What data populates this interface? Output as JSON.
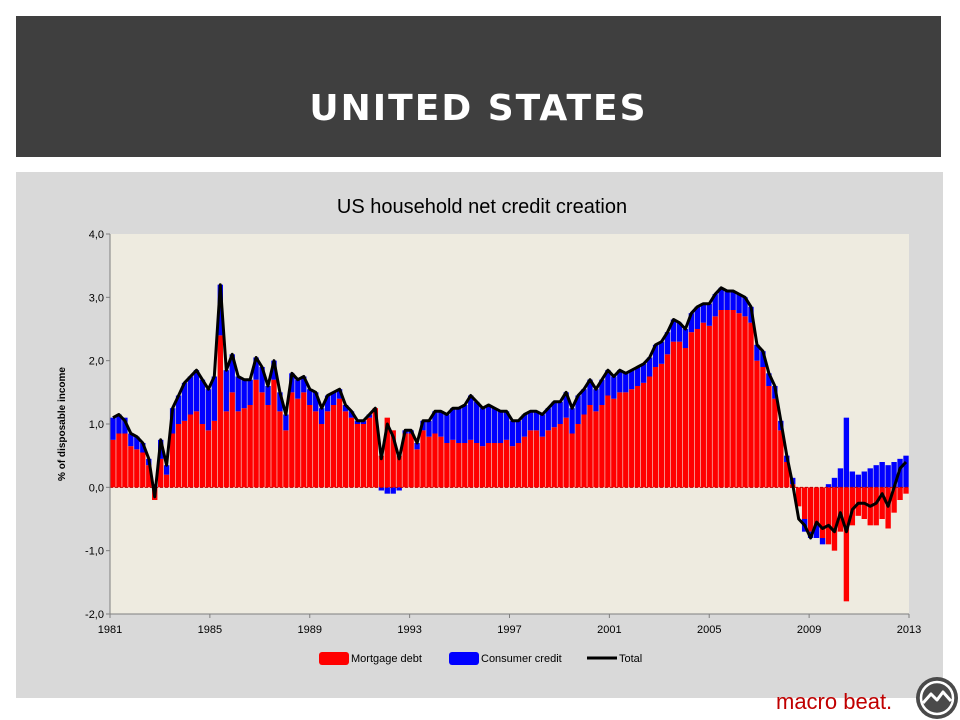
{
  "header": {
    "title": "UNITED STATES"
  },
  "brand": {
    "text": "macro beat.",
    "icon": "mountain-logo-icon"
  },
  "colors": {
    "header_bg": "#3f3f3f",
    "panel_bg": "#d9d9d9",
    "plot_bg": "#eeebe0",
    "mortgage": "#ff0000",
    "consumer": "#0000ff",
    "total": "#000000",
    "brand": "#c00000"
  },
  "chart_data": {
    "type": "bar",
    "stacked": true,
    "title": "US household net credit creation",
    "ylabel": "% of disposable income",
    "xlabel": "",
    "ylim": [
      -2.0,
      4.0
    ],
    "y_ticks": [
      "4,0",
      "3,0",
      "2,0",
      "1,0",
      "0,0",
      "-1,0",
      "-2,0"
    ],
    "x_ticks": [
      "1981",
      "1985",
      "1989",
      "1993",
      "1997",
      "2001",
      "2005",
      "2009",
      "2013"
    ],
    "grid": false,
    "legend_position": "bottom",
    "frequency": "quarterly",
    "x_range": [
      "1981",
      "2013"
    ],
    "series": [
      {
        "name": "Mortgage debt",
        "kind": "bar",
        "values": [
          0.75,
          0.85,
          0.85,
          0.65,
          0.6,
          0.55,
          0.35,
          -0.2,
          0.45,
          0.2,
          0.85,
          1.0,
          1.05,
          1.15,
          1.2,
          1.0,
          0.9,
          1.05,
          2.4,
          1.2,
          1.5,
          1.2,
          1.25,
          1.3,
          1.7,
          1.5,
          1.3,
          1.7,
          1.2,
          0.9,
          1.5,
          1.4,
          1.5,
          1.3,
          1.2,
          1.0,
          1.2,
          1.3,
          1.4,
          1.2,
          1.1,
          1.0,
          1.0,
          1.1,
          1.25,
          0.5,
          1.1,
          0.9,
          0.5,
          0.85,
          0.85,
          0.6,
          0.9,
          0.8,
          0.85,
          0.8,
          0.7,
          0.75,
          0.7,
          0.7,
          0.75,
          0.7,
          0.65,
          0.7,
          0.7,
          0.7,
          0.75,
          0.65,
          0.7,
          0.8,
          0.9,
          0.9,
          0.8,
          0.9,
          0.95,
          1.0,
          1.1,
          0.85,
          1.0,
          1.15,
          1.3,
          1.2,
          1.3,
          1.45,
          1.4,
          1.5,
          1.5,
          1.55,
          1.6,
          1.65,
          1.75,
          1.9,
          1.95,
          2.1,
          2.3,
          2.3,
          2.2,
          2.45,
          2.5,
          2.6,
          2.55,
          2.7,
          2.8,
          2.8,
          2.8,
          2.75,
          2.7,
          2.6,
          2.0,
          1.9,
          1.6,
          1.4,
          0.9,
          0.4,
          0.05,
          -0.3,
          -0.5,
          -0.7,
          -0.6,
          -0.8,
          -0.9,
          -1.0,
          -0.7,
          -1.8,
          -0.6,
          -0.45,
          -0.5,
          -0.6,
          -0.6,
          -0.5,
          -0.65,
          -0.4,
          -0.2,
          -0.1
        ],
        "note": "Bar values are approximate, read from the chart."
      },
      {
        "name": "Consumer credit",
        "kind": "bar",
        "values": [
          0.35,
          0.3,
          0.25,
          0.2,
          0.2,
          0.15,
          0.1,
          0.05,
          0.3,
          0.15,
          0.4,
          0.45,
          0.6,
          0.6,
          0.65,
          0.7,
          0.65,
          0.7,
          0.8,
          0.65,
          0.6,
          0.55,
          0.45,
          0.4,
          0.35,
          0.4,
          0.3,
          0.3,
          0.3,
          0.25,
          0.3,
          0.3,
          0.25,
          0.25,
          0.3,
          0.25,
          0.25,
          0.2,
          0.15,
          0.1,
          0.1,
          0.05,
          0.05,
          0.05,
          0.0,
          -0.05,
          -0.1,
          -0.1,
          -0.05,
          0.05,
          0.05,
          0.1,
          0.15,
          0.25,
          0.35,
          0.4,
          0.45,
          0.5,
          0.55,
          0.6,
          0.7,
          0.65,
          0.6,
          0.6,
          0.55,
          0.5,
          0.45,
          0.4,
          0.35,
          0.35,
          0.3,
          0.3,
          0.35,
          0.35,
          0.4,
          0.35,
          0.4,
          0.4,
          0.45,
          0.4,
          0.4,
          0.35,
          0.4,
          0.4,
          0.35,
          0.35,
          0.3,
          0.3,
          0.3,
          0.3,
          0.3,
          0.35,
          0.35,
          0.35,
          0.35,
          0.3,
          0.3,
          0.3,
          0.35,
          0.3,
          0.35,
          0.35,
          0.35,
          0.3,
          0.3,
          0.3,
          0.3,
          0.25,
          0.25,
          0.25,
          0.2,
          0.2,
          0.15,
          0.1,
          0.1,
          0.0,
          -0.2,
          -0.1,
          -0.2,
          -0.1,
          0.05,
          0.15,
          0.3,
          1.1,
          0.25,
          0.2,
          0.25,
          0.3,
          0.35,
          0.4,
          0.35,
          0.4,
          0.45,
          0.5
        ],
        "note": "Bar values are approximate, read from the chart."
      },
      {
        "name": "Total",
        "kind": "line",
        "values": [
          1.1,
          1.15,
          1.05,
          0.85,
          0.8,
          0.7,
          0.45,
          -0.15,
          0.75,
          0.35,
          1.25,
          1.45,
          1.65,
          1.75,
          1.85,
          1.7,
          1.55,
          1.75,
          3.2,
          1.85,
          2.1,
          1.75,
          1.7,
          1.7,
          2.05,
          1.9,
          1.6,
          2.0,
          1.5,
          1.15,
          1.8,
          1.7,
          1.75,
          1.55,
          1.5,
          1.25,
          1.45,
          1.5,
          1.55,
          1.3,
          1.2,
          1.05,
          1.05,
          1.15,
          1.25,
          0.45,
          1.0,
          0.8,
          0.45,
          0.9,
          0.9,
          0.7,
          1.05,
          1.05,
          1.2,
          1.2,
          1.15,
          1.25,
          1.25,
          1.3,
          1.45,
          1.35,
          1.25,
          1.3,
          1.25,
          1.2,
          1.2,
          1.05,
          1.05,
          1.15,
          1.2,
          1.2,
          1.15,
          1.25,
          1.35,
          1.35,
          1.5,
          1.25,
          1.45,
          1.55,
          1.7,
          1.55,
          1.7,
          1.85,
          1.75,
          1.85,
          1.8,
          1.85,
          1.9,
          1.95,
          2.05,
          2.25,
          2.3,
          2.45,
          2.65,
          2.6,
          2.5,
          2.75,
          2.85,
          2.9,
          2.9,
          3.05,
          3.15,
          3.1,
          3.1,
          3.05,
          3.0,
          2.85,
          2.25,
          2.15,
          1.8,
          1.6,
          1.05,
          0.5,
          0.05,
          -0.5,
          -0.6,
          -0.8,
          -0.55,
          -0.65,
          -0.6,
          -0.7,
          -0.4,
          -0.7,
          -0.35,
          -0.25,
          -0.25,
          -0.3,
          -0.25,
          -0.1,
          -0.3,
          0.0,
          0.3,
          0.4
        ]
      }
    ]
  }
}
